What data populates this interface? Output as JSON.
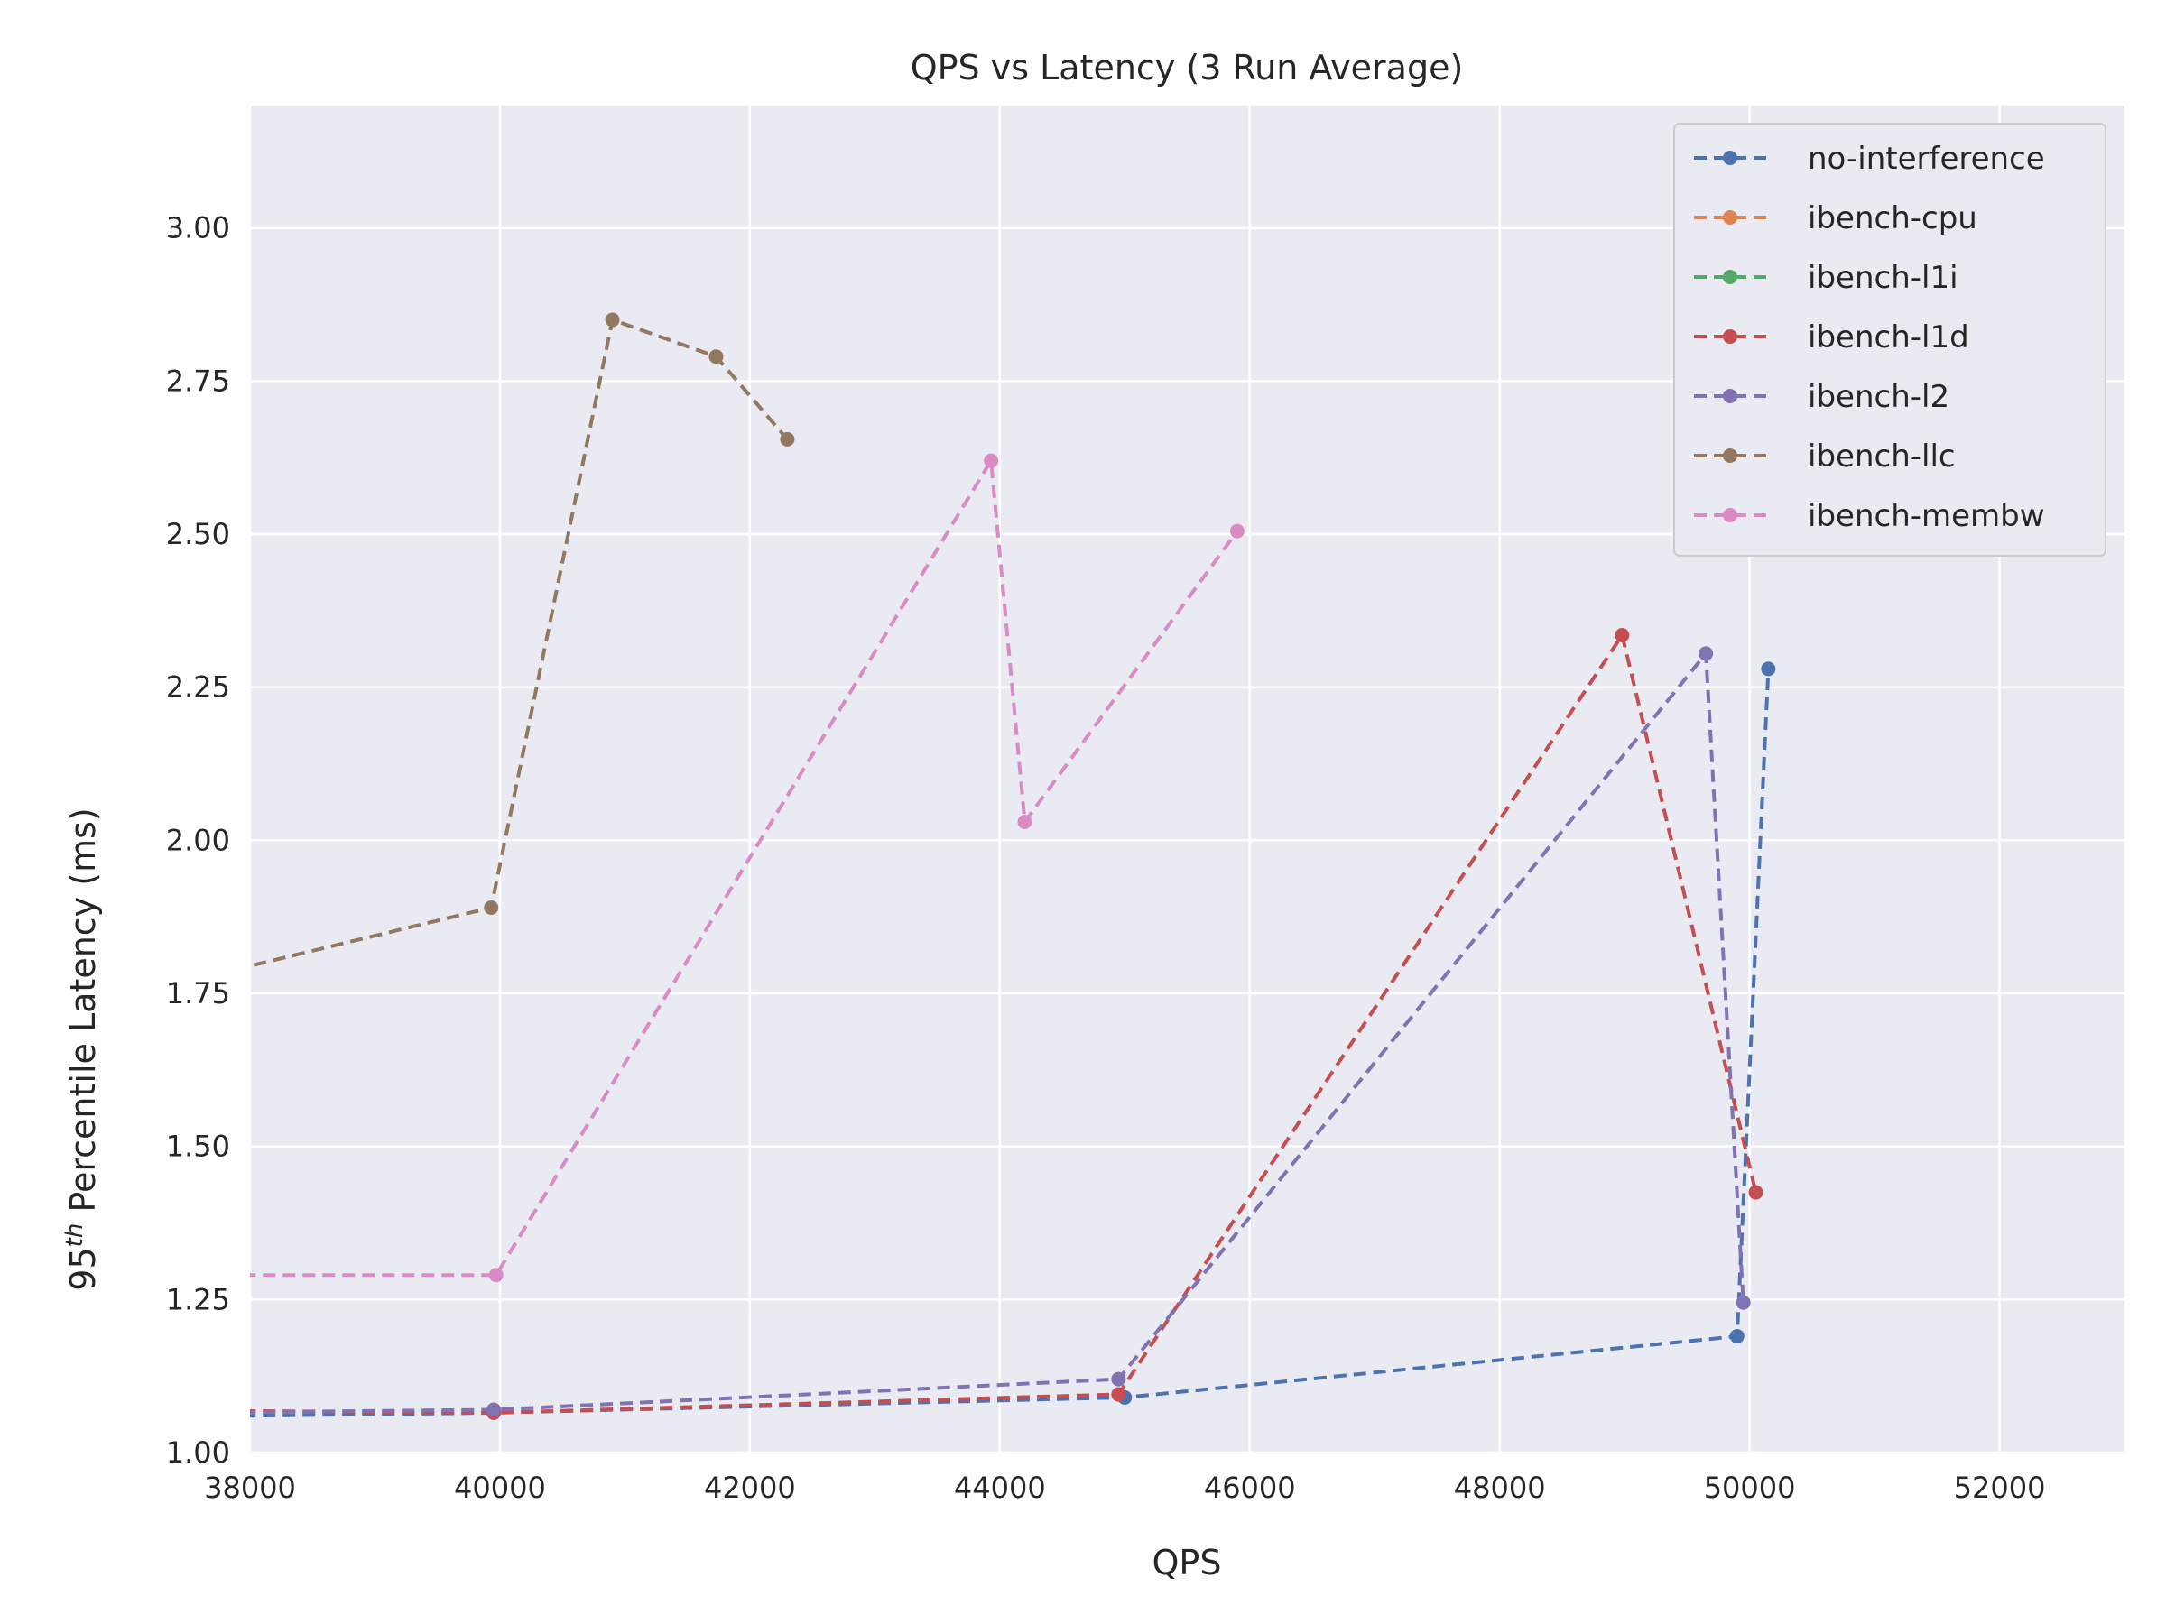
{
  "chart_data": {
    "type": "line",
    "title": "QPS vs Latency (3 Run Average)",
    "xlabel": "QPS",
    "ylabel_prefix": "95",
    "ylabel_superscript": "th",
    "ylabel_suffix": " Percentile Latency (ms)",
    "xlim": [
      38000,
      53000
    ],
    "ylim": [
      1.0,
      3.2
    ],
    "xticks": [
      38000,
      40000,
      42000,
      44000,
      46000,
      48000,
      50000,
      52000
    ],
    "xtick_labels": [
      "38000",
      "40000",
      "42000",
      "44000",
      "46000",
      "48000",
      "50000",
      "52000"
    ],
    "yticks": [
      1.0,
      1.25,
      1.5,
      1.75,
      2.0,
      2.25,
      2.5,
      2.75,
      3.0
    ],
    "ytick_labels": [
      "1.00",
      "1.25",
      "1.50",
      "1.75",
      "2.00",
      "2.25",
      "2.50",
      "2.75",
      "3.00"
    ],
    "grid": true,
    "legend_position": "top-right",
    "background_color": "#eaeaf2",
    "series": [
      {
        "name": "no-interference",
        "color": "#4c72b0",
        "points": [
          [
            30000,
            1.04
          ],
          [
            39950,
            1.065
          ],
          [
            45000,
            1.09
          ],
          [
            49900,
            1.19
          ],
          [
            50150,
            2.28
          ]
        ]
      },
      {
        "name": "ibench-cpu",
        "color": "#dd8452",
        "points": []
      },
      {
        "name": "ibench-l1i",
        "color": "#55a868",
        "points": []
      },
      {
        "name": "ibench-l1d",
        "color": "#c44e52",
        "points": [
          [
            30000,
            1.08
          ],
          [
            39950,
            1.065
          ],
          [
            44950,
            1.095
          ],
          [
            48980,
            2.335
          ],
          [
            50050,
            1.425
          ]
        ]
      },
      {
        "name": "ibench-l2",
        "color": "#8172b3",
        "points": [
          [
            30000,
            1.05
          ],
          [
            39950,
            1.07
          ],
          [
            44950,
            1.12
          ],
          [
            49650,
            2.305
          ],
          [
            49950,
            1.245
          ]
        ]
      },
      {
        "name": "ibench-llc",
        "color": "#937860",
        "points": [
          [
            30000,
            1.4
          ],
          [
            39930,
            1.89
          ],
          [
            40900,
            2.85
          ],
          [
            41730,
            2.79
          ],
          [
            42300,
            2.655
          ]
        ]
      },
      {
        "name": "ibench-membw",
        "color": "#da8bc3",
        "points": [
          [
            30000,
            1.29
          ],
          [
            39970,
            1.29
          ],
          [
            43930,
            2.62
          ],
          [
            44200,
            2.03
          ],
          [
            45900,
            2.505
          ]
        ]
      }
    ]
  }
}
